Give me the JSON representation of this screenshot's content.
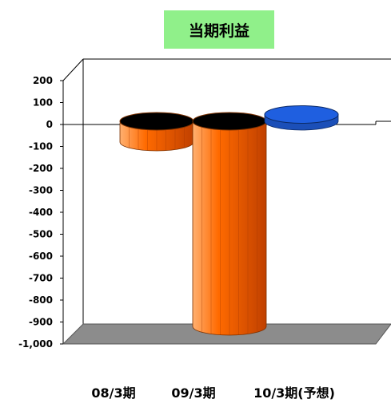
{
  "chart_data": {
    "type": "bar",
    "title": "当期利益",
    "categories": [
      "08/3期",
      "09/3期",
      "10/3期(予想)"
    ],
    "values": [
      -80,
      -920,
      60
    ],
    "ylim": [
      -1000,
      200
    ],
    "yticks": [
      "200",
      "100",
      "0",
      "-100",
      "-200",
      "-300",
      "-400",
      "-500",
      "-600",
      "-700",
      "-800",
      "-900",
      "-1,000"
    ],
    "colors": {
      "negative": "#ff6a00",
      "positive": "#1f5fe0",
      "floor": "#8c8c8c"
    }
  }
}
